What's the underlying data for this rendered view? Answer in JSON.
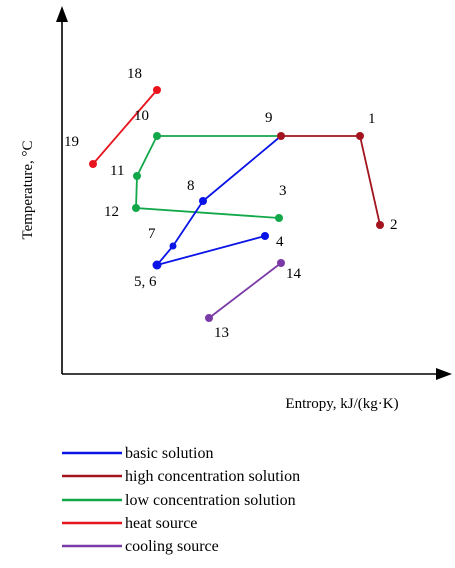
{
  "axes": {
    "y_label": "Temperature, °C",
    "x_label": "Entropy, kJ/(kg·K)"
  },
  "colors": {
    "basic": "#0a14e6",
    "high": "#a3141e",
    "low": "#12a84a",
    "heat": "#e8141e",
    "cooling": "#7a3aa8"
  },
  "points": [
    {
      "id": "1",
      "label": "1"
    },
    {
      "id": "2",
      "label": "2"
    },
    {
      "id": "3",
      "label": "3"
    },
    {
      "id": "4",
      "label": "4"
    },
    {
      "id": "56",
      "label": "5, 6"
    },
    {
      "id": "7",
      "label": "7"
    },
    {
      "id": "8",
      "label": "8"
    },
    {
      "id": "9",
      "label": "9"
    },
    {
      "id": "10",
      "label": "10"
    },
    {
      "id": "11",
      "label": "11"
    },
    {
      "id": "12",
      "label": "12"
    },
    {
      "id": "13",
      "label": "13"
    },
    {
      "id": "14",
      "label": "14"
    },
    {
      "id": "18",
      "label": "18"
    },
    {
      "id": "19",
      "label": "19"
    }
  ],
  "legend": [
    {
      "key": "basic",
      "label": "basic solution"
    },
    {
      "key": "high",
      "label": "high concentration solution"
    },
    {
      "key": "low",
      "label": "low concentration solution"
    },
    {
      "key": "heat",
      "label": "heat source"
    },
    {
      "key": "cooling",
      "label": "cooling source"
    }
  ]
}
